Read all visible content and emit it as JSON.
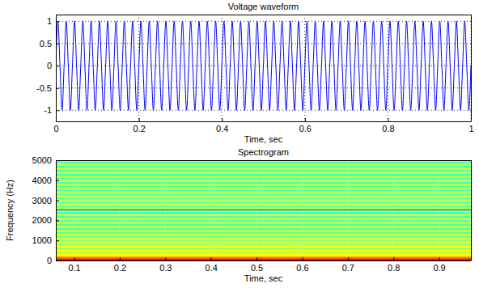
{
  "chart_data": [
    {
      "type": "line",
      "title": "Voltage waveform",
      "xlabel": "Time, sec",
      "color": "#0000ff",
      "grid": true,
      "xlim": [
        0,
        1
      ],
      "xticks": [
        0,
        0.2,
        0.4,
        0.6,
        0.8,
        1
      ],
      "ylim": [
        -1.25,
        1.15
      ],
      "yticks": [
        -1,
        -0.5,
        0,
        0.5,
        1
      ],
      "x": [
        0,
        0.005,
        0.01,
        0.015,
        0.02,
        0.025,
        0.03,
        0.035,
        0.04,
        0.045,
        0.05,
        0.055,
        0.06,
        0.065,
        0.07,
        0.075,
        0.08,
        0.085,
        0.09,
        0.095,
        0.1,
        0.105,
        0.11,
        0.115,
        0.12,
        0.125,
        0.13,
        0.135,
        0.14,
        0.145,
        0.15,
        0.155,
        0.16,
        0.165,
        0.17,
        0.175,
        0.18,
        0.185,
        0.19,
        0.195,
        0.2,
        0.205,
        0.21,
        0.215,
        0.22,
        0.225,
        0.23,
        0.235,
        0.24,
        0.245,
        0.25,
        0.255,
        0.26,
        0.265,
        0.27,
        0.275,
        0.28,
        0.285,
        0.29,
        0.295,
        0.3,
        0.305,
        0.31,
        0.315,
        0.32,
        0.325,
        0.33,
        0.335,
        0.34,
        0.345,
        0.35,
        0.355,
        0.36,
        0.365,
        0.37,
        0.375,
        0.38,
        0.385,
        0.39,
        0.395,
        0.4,
        0.405,
        0.41,
        0.415,
        0.42,
        0.425,
        0.43,
        0.435,
        0.44,
        0.445,
        0.45,
        0.455,
        0.46,
        0.465,
        0.47,
        0.475,
        0.48,
        0.485,
        0.49,
        0.495,
        0.5,
        0.505,
        0.51,
        0.515,
        0.52,
        0.525,
        0.53,
        0.535,
        0.54,
        0.545,
        0.55,
        0.555,
        0.56,
        0.565,
        0.57,
        0.575,
        0.58,
        0.585,
        0.59,
        0.595,
        0.6,
        0.605,
        0.61,
        0.615,
        0.62,
        0.625,
        0.63,
        0.635,
        0.64,
        0.645,
        0.65,
        0.655,
        0.66,
        0.665,
        0.67,
        0.675,
        0.68,
        0.685,
        0.69,
        0.695,
        0.7,
        0.705,
        0.71,
        0.715,
        0.72,
        0.725,
        0.73,
        0.735,
        0.74,
        0.745,
        0.75,
        0.755,
        0.76,
        0.765,
        0.77,
        0.775,
        0.78,
        0.785,
        0.79,
        0.795,
        0.8,
        0.805,
        0.81,
        0.815,
        0.82,
        0.825,
        0.83,
        0.835,
        0.84,
        0.845,
        0.85,
        0.855,
        0.86,
        0.865,
        0.87,
        0.875,
        0.88,
        0.885,
        0.89,
        0.895,
        0.9,
        0.905,
        0.91,
        0.915,
        0.92,
        0.925,
        0.93,
        0.935,
        0.94,
        0.945,
        0.95,
        0.955,
        0.96,
        0.965,
        0.97,
        0.975,
        0.98,
        0.985,
        0.99,
        0.995,
        1
      ],
      "values": [
        0,
        1,
        0,
        -1,
        0,
        1,
        0,
        -1,
        0,
        1,
        0,
        -1,
        0,
        1,
        0,
        -1,
        0,
        1,
        0,
        -1,
        0,
        1,
        0,
        -1,
        0,
        1,
        0,
        -1,
        0,
        1,
        0,
        -1,
        0,
        1,
        0,
        -1,
        0,
        1,
        0,
        -1,
        0,
        1,
        0,
        -1,
        0,
        1,
        0,
        -1,
        0,
        1,
        0,
        -1,
        0,
        1,
        0,
        -1,
        0,
        1,
        0,
        -1,
        0,
        1,
        0,
        -1,
        0,
        1,
        0,
        -1,
        0,
        1,
        0,
        -1,
        0,
        1,
        0,
        -1,
        0,
        1,
        0,
        -1,
        0,
        1,
        0,
        -1,
        0,
        1,
        0,
        -1,
        0,
        1,
        0,
        -1,
        0,
        1,
        0,
        -1,
        0,
        1,
        0,
        -1,
        0,
        1,
        0,
        -1,
        0,
        1,
        0,
        -1,
        0,
        1,
        0,
        -1,
        0,
        1,
        0,
        -1,
        0,
        1,
        0,
        -1,
        0,
        1,
        0,
        -1,
        0,
        1,
        0,
        -1,
        0,
        1,
        0,
        -1,
        0,
        1,
        0,
        -1,
        0,
        1,
        0,
        -1,
        0,
        1,
        0,
        -1,
        0,
        1,
        0,
        -1,
        0,
        1,
        0,
        -1,
        0,
        1,
        0,
        -1,
        0,
        1,
        0,
        -1,
        0,
        1,
        0,
        -1,
        0,
        1,
        0,
        -1,
        0,
        1,
        0,
        -1,
        0,
        1,
        0,
        -1,
        0,
        1,
        0,
        -1,
        0,
        1,
        0,
        -1,
        0,
        1,
        0,
        -1,
        0,
        1,
        0,
        -1,
        0,
        1,
        0,
        -1,
        0,
        1,
        0,
        -1,
        0
      ]
    },
    {
      "type": "heatmap",
      "title": "Spectrogram",
      "xlabel": "Time, sec",
      "ylabel": "Frequency (Hz)",
      "grid": true,
      "xlim": [
        0.06,
        0.97
      ],
      "xticks": [
        0.1,
        0.2,
        0.3,
        0.4,
        0.5,
        0.6,
        0.7,
        0.8,
        0.9
      ],
      "ylim": [
        0,
        5000
      ],
      "yticks": [
        0,
        1000,
        2000,
        3000,
        4000,
        5000
      ],
      "y_bins": [
        0,
        50,
        100,
        150,
        200,
        250,
        300,
        350,
        400,
        450,
        500,
        550,
        600,
        650,
        700,
        750,
        800,
        850,
        900,
        950,
        1000,
        1050,
        1100,
        1150,
        1200,
        1250,
        1300,
        1350,
        1400,
        1450,
        1500,
        1550,
        1600,
        1650,
        1700,
        1750,
        1800,
        1850,
        1900,
        1950,
        2000,
        2050,
        2100,
        2150,
        2200,
        2250,
        2300,
        2350,
        2400,
        2450,
        2500,
        2550,
        2600,
        2650,
        2700,
        2750,
        2800,
        2850,
        2900,
        2950,
        3000,
        3050,
        3100,
        3150,
        3200,
        3250,
        3300,
        3350,
        3400,
        3450,
        3500,
        3550,
        3600,
        3650,
        3700,
        3750,
        3800,
        3850,
        3900,
        3950,
        4000,
        4050,
        4100,
        4150,
        4200,
        4250,
        4300,
        4350,
        4400,
        4450,
        4500,
        4550,
        4600,
        4650,
        4700,
        4750,
        4800,
        4850,
        4900,
        4950,
        5000
      ],
      "cells": [
        -3,
        -14,
        -22,
        -30,
        -36,
        -38,
        -37,
        -50,
        -38,
        -39,
        -37,
        -51,
        -39,
        -40,
        -38,
        -52,
        -40,
        -41,
        -42,
        -53,
        -41,
        -42,
        -41,
        -55,
        -42,
        -43,
        -42,
        -54,
        -43,
        -42,
        -43,
        -56,
        -42,
        -43,
        -42,
        -55,
        -43,
        -44,
        -43,
        -56,
        -43,
        -44,
        -43,
        -55,
        -44,
        -43,
        -44,
        -57,
        -44,
        -48,
        -80,
        -48,
        -44,
        -56,
        -43,
        -44,
        -43,
        -57,
        -44,
        -43,
        -44,
        -55,
        -43,
        -44,
        -43,
        -56,
        -44,
        -43,
        -44,
        -57,
        -43,
        -44,
        -43,
        -55,
        -44,
        -43,
        -44,
        -56,
        -43,
        -44,
        -43,
        -55,
        -44,
        -43,
        -44,
        -57,
        -43,
        -44,
        -43,
        -55,
        -44,
        -43,
        -44,
        -56,
        -43,
        -44,
        -43,
        -55,
        -44,
        -58
      ],
      "color_range": [
        -100,
        0
      ]
    }
  ]
}
